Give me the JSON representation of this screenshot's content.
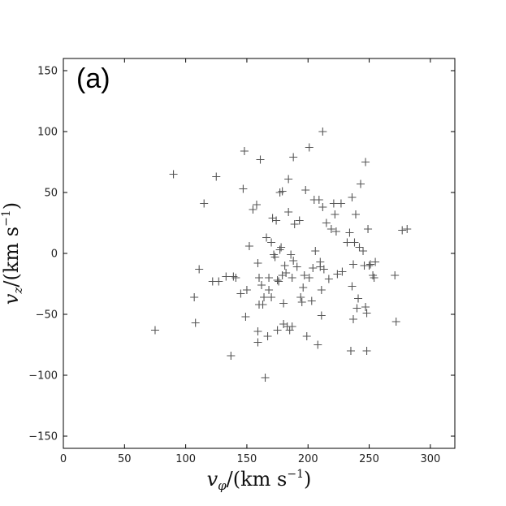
{
  "chart_data": {
    "type": "scatter",
    "panel_label": "(a)",
    "xlabel": "v_φ/(km s⁻¹)",
    "ylabel": "v_z/(km s⁻¹)",
    "xlim": [
      0,
      320
    ],
    "ylim": [
      -160,
      160
    ],
    "xticks": [
      "0",
      "50",
      "100",
      "150",
      "200",
      "250",
      "300"
    ],
    "yticks": [
      "−150",
      "−100",
      "−50",
      "0",
      "50",
      "100",
      "150"
    ],
    "marker": "plus",
    "marker_color": "#555555",
    "grid": false,
    "points": [
      [
        75,
        -63
      ],
      [
        90,
        65
      ],
      [
        107,
        -36
      ],
      [
        108,
        -57
      ],
      [
        111,
        -13
      ],
      [
        115,
        41
      ],
      [
        122,
        -23
      ],
      [
        125,
        63
      ],
      [
        127,
        -23
      ],
      [
        133,
        -19
      ],
      [
        137,
        -84
      ],
      [
        139,
        -19
      ],
      [
        141,
        -20
      ],
      [
        145,
        -33
      ],
      [
        147,
        53
      ],
      [
        148,
        84
      ],
      [
        149,
        -52
      ],
      [
        150,
        -30
      ],
      [
        152,
        6
      ],
      [
        155,
        36
      ],
      [
        158,
        40
      ],
      [
        159,
        -8
      ],
      [
        159,
        -64
      ],
      [
        159,
        -73
      ],
      [
        160,
        -20
      ],
      [
        160,
        -42
      ],
      [
        161,
        77
      ],
      [
        162,
        -26
      ],
      [
        163,
        -42
      ],
      [
        164,
        -36
      ],
      [
        165,
        -102
      ],
      [
        166,
        13
      ],
      [
        167,
        -68
      ],
      [
        168,
        -20
      ],
      [
        168,
        -30
      ],
      [
        170,
        -36
      ],
      [
        170,
        9
      ],
      [
        171,
        29
      ],
      [
        172,
        -1
      ],
      [
        173,
        -3
      ],
      [
        174,
        27
      ],
      [
        175,
        -22
      ],
      [
        175,
        -63
      ],
      [
        176,
        -23
      ],
      [
        177,
        50
      ],
      [
        177,
        3
      ],
      [
        178,
        5
      ],
      [
        179,
        -18
      ],
      [
        179,
        51
      ],
      [
        180,
        -41
      ],
      [
        180,
        -58
      ],
      [
        181,
        -10
      ],
      [
        182,
        -16
      ],
      [
        183,
        -60
      ],
      [
        184,
        34
      ],
      [
        184,
        61
      ],
      [
        185,
        -63
      ],
      [
        186,
        -1
      ],
      [
        187,
        -20
      ],
      [
        187,
        -60
      ],
      [
        188,
        79
      ],
      [
        188,
        -6
      ],
      [
        189,
        24
      ],
      [
        191,
        -11
      ],
      [
        193,
        27
      ],
      [
        194,
        -36
      ],
      [
        195,
        -40
      ],
      [
        196,
        -28
      ],
      [
        197,
        -18
      ],
      [
        198,
        52
      ],
      [
        199,
        -68
      ],
      [
        201,
        87
      ],
      [
        201,
        -20
      ],
      [
        203,
        -39
      ],
      [
        204,
        -12
      ],
      [
        205,
        44
      ],
      [
        206,
        2
      ],
      [
        208,
        -75
      ],
      [
        209,
        44
      ],
      [
        210,
        -7
      ],
      [
        210,
        -11
      ],
      [
        211,
        -51
      ],
      [
        211,
        -30
      ],
      [
        212,
        38
      ],
      [
        212,
        100
      ],
      [
        213,
        -13
      ],
      [
        215,
        25
      ],
      [
        217,
        -21
      ],
      [
        219,
        20
      ],
      [
        221,
        41
      ],
      [
        222,
        32
      ],
      [
        223,
        18
      ],
      [
        224,
        -17
      ],
      [
        227,
        41
      ],
      [
        228,
        -15
      ],
      [
        232,
        9
      ],
      [
        234,
        17
      ],
      [
        235,
        -80
      ],
      [
        236,
        46
      ],
      [
        236,
        -27
      ],
      [
        237,
        -54
      ],
      [
        237,
        -9
      ],
      [
        238,
        9
      ],
      [
        239,
        32
      ],
      [
        240,
        -45
      ],
      [
        241,
        -37
      ],
      [
        242,
        5
      ],
      [
        243,
        57
      ],
      [
        245,
        2
      ],
      [
        246,
        -10
      ],
      [
        247,
        75
      ],
      [
        247,
        -44
      ],
      [
        248,
        -80
      ],
      [
        248,
        -49
      ],
      [
        249,
        20
      ],
      [
        251,
        -9
      ],
      [
        253,
        -18
      ],
      [
        254,
        -20
      ],
      [
        255,
        -7
      ],
      [
        271,
        -18
      ],
      [
        272,
        -56
      ],
      [
        277,
        19
      ],
      [
        281,
        20
      ],
      [
        250,
        -10
      ]
    ]
  }
}
